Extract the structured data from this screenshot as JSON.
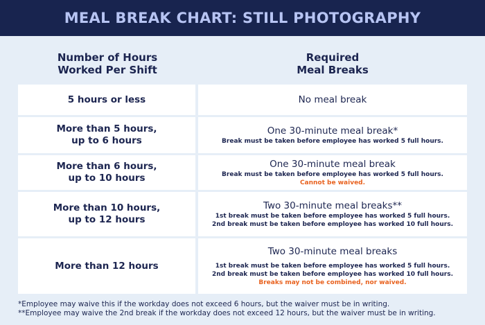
{
  "title": "MEAL BREAK CHART: STILL PHOTOGRAPHY",
  "columns": {
    "left": [
      "Number of Hours",
      "Worked Per Shift"
    ],
    "right": [
      "Required",
      "Meal Breaks"
    ]
  },
  "rows": [
    {
      "hours": [
        "5 hours or less"
      ],
      "break": "No meal break",
      "notes": [],
      "warning": ""
    },
    {
      "hours": [
        "More than 5 hours,",
        "up to 6 hours"
      ],
      "break": "One 30-minute meal break*",
      "notes": [
        "Break must be taken before employee has worked 5 full hours."
      ],
      "warning": ""
    },
    {
      "hours": [
        "More than 6 hours,",
        "up to 10 hours"
      ],
      "break": "One 30-minute meal break",
      "notes": [
        "Break must be taken before employee has worked 5 full hours."
      ],
      "warning": "Cannot be waived."
    },
    {
      "hours": [
        "More than 10 hours,",
        "up to 12 hours"
      ],
      "break": "Two 30-minute meal breaks**",
      "notes": [
        "1st break must be taken before employee has worked 5 full hours.",
        "2nd break must be taken before employee has worked 10 full hours."
      ],
      "warning": ""
    },
    {
      "hours": [
        "More than 12 hours"
      ],
      "break": "Two 30-minute meal breaks",
      "notes": [
        "1st break must be taken before employee has worked 5 full hours.",
        "2nd break must be taken before employee has worked 10 full hours."
      ],
      "warning": "Breaks may not be combined, nor waived."
    }
  ],
  "footnotes": [
    "*Employee may waive this if the workday does not exceed 6 hours, but the waiver must be in writing.",
    "**Employee may waive the 2nd break if the workday does not exceed 12 hours, but the waiver must be in writing."
  ],
  "colors": {
    "header_bg": "#18244f",
    "title_text": "#b7c4f3",
    "page_bg": "#e6eef7",
    "text": "#1c2550",
    "warning": "#e8621f"
  }
}
